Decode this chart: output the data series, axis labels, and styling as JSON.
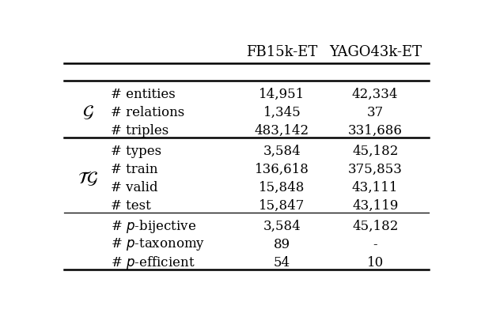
{
  "col_headers": [
    "FB15k-ET",
    "YAGO43k-ET"
  ],
  "g_rows": [
    [
      "# entities",
      "14,951",
      "42,334"
    ],
    [
      "# relations",
      "1,345",
      "37"
    ],
    [
      "# triples",
      "483,142",
      "331,686"
    ]
  ],
  "tg_upper_rows": [
    [
      "# types",
      "3,584",
      "45,182"
    ],
    [
      "# train",
      "136,618",
      "375,853"
    ],
    [
      "# valid",
      "15,848",
      "43,111"
    ],
    [
      "# test",
      "15,847",
      "43,119"
    ]
  ],
  "tg_lower_rows": [
    [
      "# $p$-bijective",
      "3,584",
      "45,182"
    ],
    [
      "# $p$-taxonomy",
      "89",
      "-"
    ],
    [
      "# $p$-efficient",
      "54",
      "10"
    ]
  ],
  "figsize": [
    6.08,
    3.96
  ],
  "dpi": 100,
  "bg_color": "#ffffff",
  "text_color": "#000000",
  "header_fontsize": 13,
  "body_fontsize": 12,
  "label_fontsize": 16
}
